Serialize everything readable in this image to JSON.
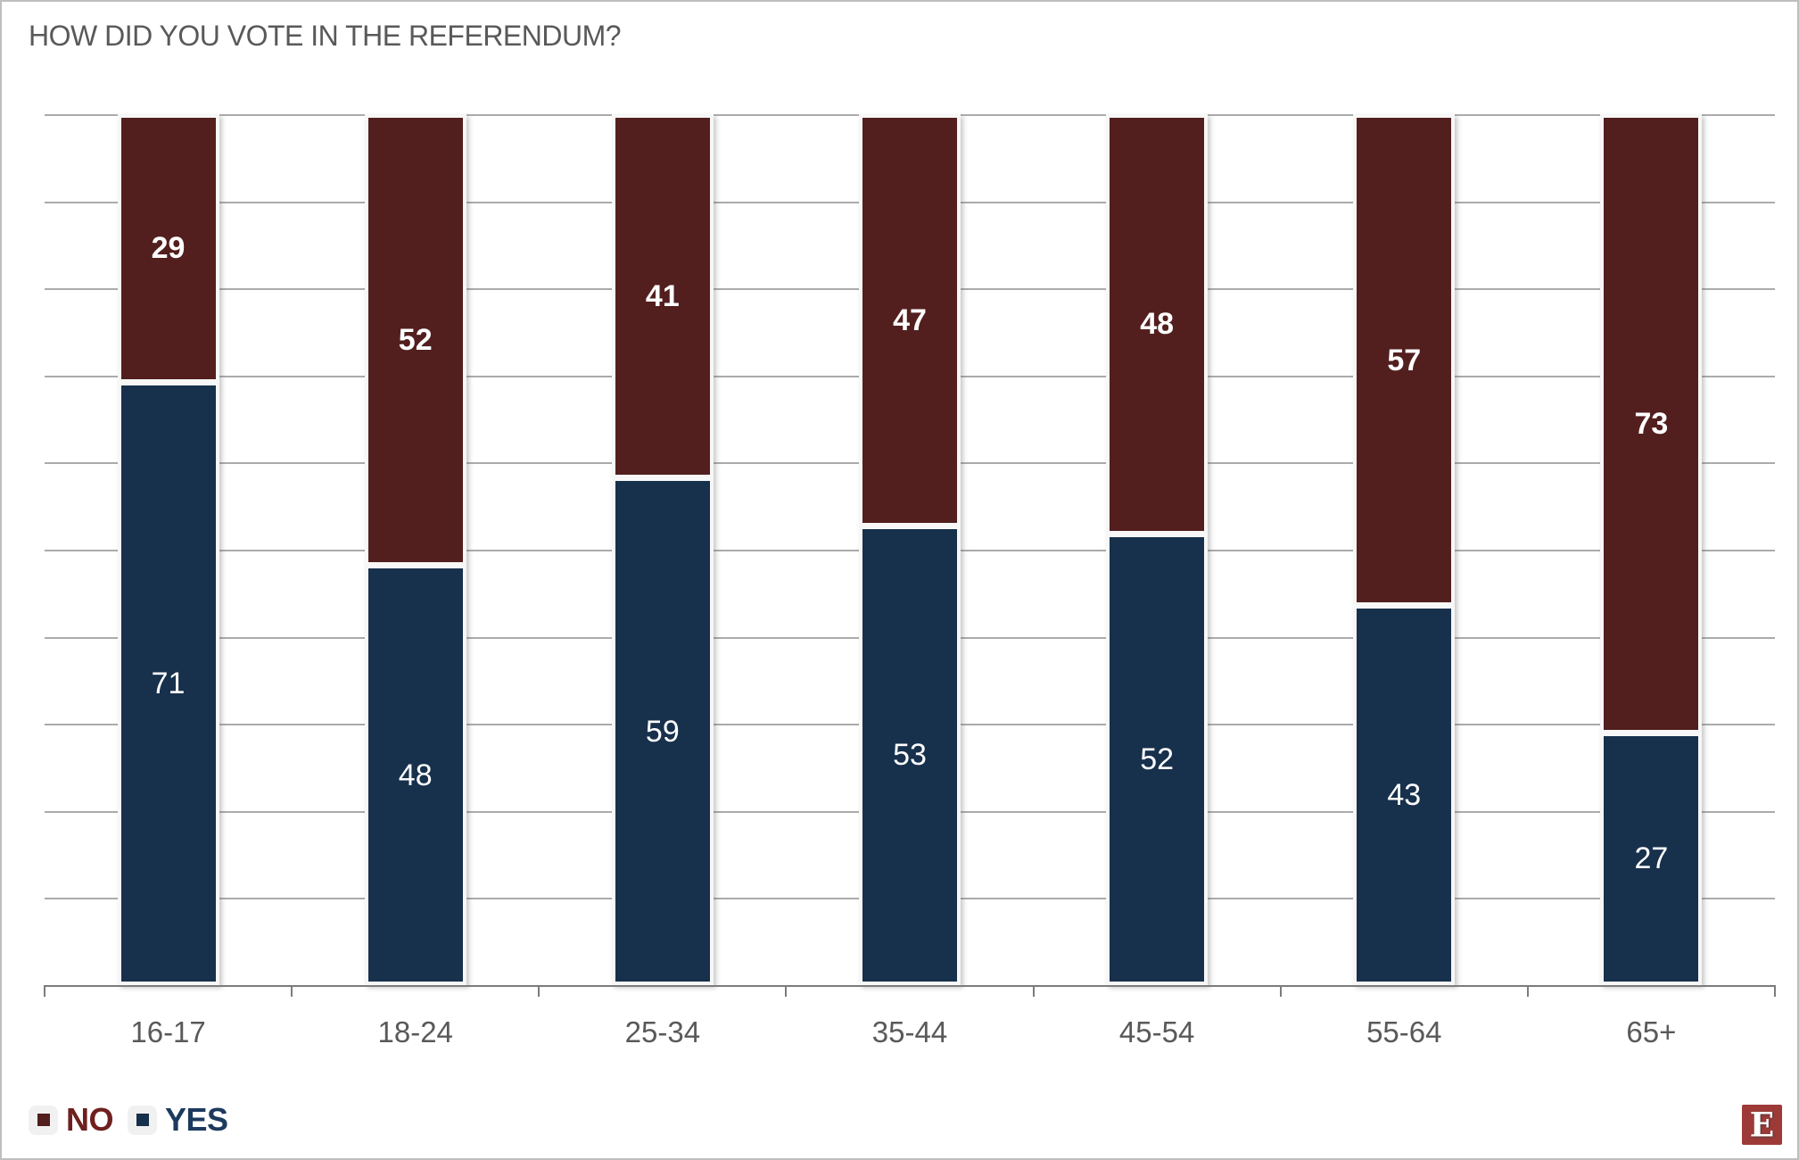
{
  "legend": {
    "no_label": "NO",
    "yes_label": "YES"
  },
  "logo": {
    "letter": "E",
    "bg_color": "#9d3a38",
    "letter_color": "#ffffff"
  },
  "chart_data": {
    "type": "bar",
    "stacked": true,
    "title": "HOW DID YOU VOTE IN THE REFERENDUM?",
    "categories": [
      "16-17",
      "18-24",
      "25-34",
      "35-44",
      "45-54",
      "55-64",
      "65+"
    ],
    "series": [
      {
        "name": "YES",
        "color": "#17304c",
        "text_color": "#ffffff",
        "label_bold": false,
        "values": [
          71,
          48,
          59,
          53,
          52,
          43,
          27
        ]
      },
      {
        "name": "NO",
        "color": "#521f1e",
        "text_color": "#ffffff",
        "label_bold": true,
        "values": [
          29,
          52,
          41,
          47,
          48,
          57,
          73
        ]
      }
    ],
    "stack_order_bottom_to_top": [
      "YES",
      "NO"
    ],
    "ylim": [
      0,
      100
    ],
    "gridline_step": 10,
    "grid": true,
    "y_axis_labels_shown": false,
    "x_tick_marks": "category_boundaries",
    "legend_position": "bottom-left",
    "colors": {
      "gridline": "#ababab",
      "axis_line": "#7c7c7c",
      "axis_label": "#595959",
      "title": "#595959",
      "legend_no_text": "#6e201f",
      "legend_yes_text": "#1c3a5e",
      "legend_chip_bg": "#f1f1f1",
      "bar_halo": "#f7f7f7",
      "canvas_border": "#bfbfbf"
    }
  }
}
